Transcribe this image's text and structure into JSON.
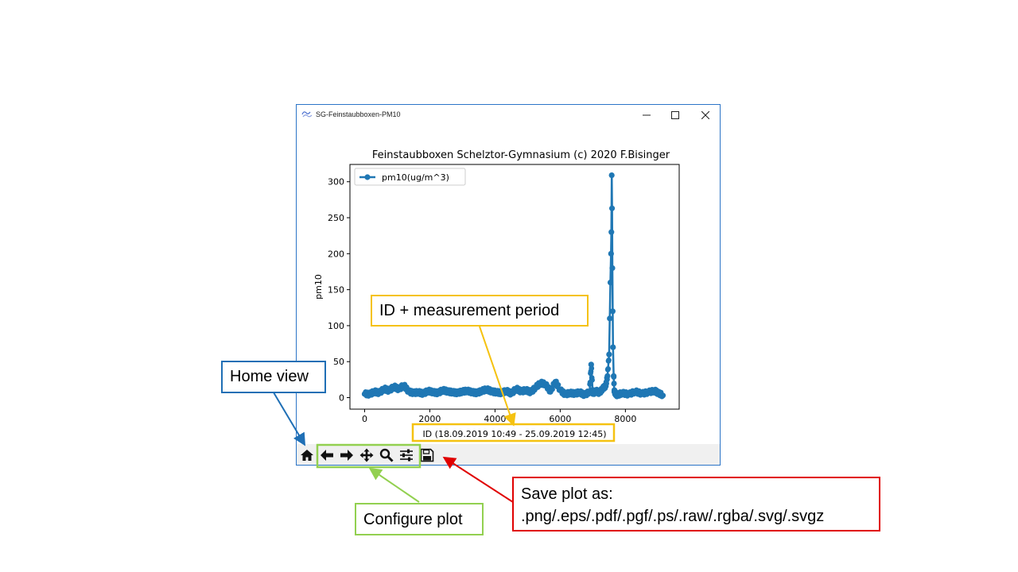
{
  "window": {
    "title": "SG-Feinstaubboxen-PM10",
    "controls": [
      "minimize",
      "maximize",
      "close"
    ]
  },
  "toolbar": {
    "buttons": [
      {
        "name": "home",
        "icon": "home-icon"
      },
      {
        "name": "back",
        "icon": "arrow-left-icon"
      },
      {
        "name": "forward",
        "icon": "arrow-right-icon"
      },
      {
        "name": "pan",
        "icon": "move-icon"
      },
      {
        "name": "zoom",
        "icon": "magnifier-icon"
      },
      {
        "name": "configure-subplots",
        "icon": "sliders-icon"
      },
      {
        "name": "save",
        "icon": "floppy-disk-icon"
      }
    ]
  },
  "annotations": {
    "home_view": "Home view",
    "id_period": "ID + measurement period",
    "configure_plot": "Configure plot",
    "save_plot": "Save plot as:\n.png/.eps/.pdf/.pgf/.ps/.raw/.rgba/.svg/.svgz"
  },
  "colors": {
    "series": "#1f77b4",
    "window_border": "#2b74c7",
    "home_callout": "#1f6fb5",
    "id_callout": "#f5c211",
    "configure_callout": "#92d050",
    "save_callout": "#e00000",
    "toolbar_bg": "#f0f0f0"
  },
  "chart_data": {
    "type": "line",
    "title": "Feinstaubboxen Schelztor-Gymnasium (c) 2020 F.Bisinger",
    "xlabel": "ID (18.09.2019 10:49 - 25.09.2019 12:45)",
    "ylabel": "pm10",
    "xlim": [
      -450,
      9650
    ],
    "ylim": [
      -16,
      324
    ],
    "xticks": [
      0,
      2000,
      4000,
      6000,
      8000
    ],
    "yticks": [
      0,
      50,
      100,
      150,
      200,
      250,
      300
    ],
    "legend_placement": "upper-left",
    "grid": false,
    "series": [
      {
        "name": "pm10(ug/m^3)",
        "marker": "circle",
        "x": [
          0,
          150,
          300,
          450,
          600,
          750,
          900,
          1050,
          1200,
          1350,
          1500,
          1650,
          1800,
          1950,
          2100,
          2250,
          2400,
          2550,
          2700,
          2850,
          3000,
          3150,
          3300,
          3450,
          3600,
          3750,
          3900,
          4050,
          4200,
          4350,
          4500,
          4650,
          4800,
          4950,
          5100,
          5250,
          5400,
          5550,
          5700,
          5850,
          6000,
          6150,
          6300,
          6450,
          6600,
          6750,
          6900,
          6950,
          7000,
          7100,
          7200,
          7300,
          7400,
          7450,
          7500,
          7520,
          7540,
          7560,
          7570,
          7580,
          7590,
          7600,
          7610,
          7620,
          7640,
          7660,
          7700,
          7750,
          7900,
          8100,
          8300,
          8500,
          8700,
          8900,
          9000,
          9150
        ],
        "values": [
          5,
          4,
          8,
          6,
          12,
          9,
          15,
          11,
          17,
          8,
          6,
          7,
          5,
          9,
          7,
          6,
          10,
          8,
          7,
          6,
          8,
          9,
          7,
          6,
          9,
          11,
          8,
          7,
          6,
          9,
          5,
          12,
          8,
          10,
          7,
          14,
          20,
          18,
          8,
          22,
          10,
          4,
          6,
          5,
          7,
          3,
          8,
          46,
          5,
          9,
          6,
          12,
          16,
          30,
          60,
          110,
          160,
          200,
          230,
          309,
          263,
          180,
          120,
          70,
          30,
          8,
          5,
          3,
          6,
          4,
          8,
          5,
          7,
          9,
          6,
          3
        ]
      }
    ]
  }
}
